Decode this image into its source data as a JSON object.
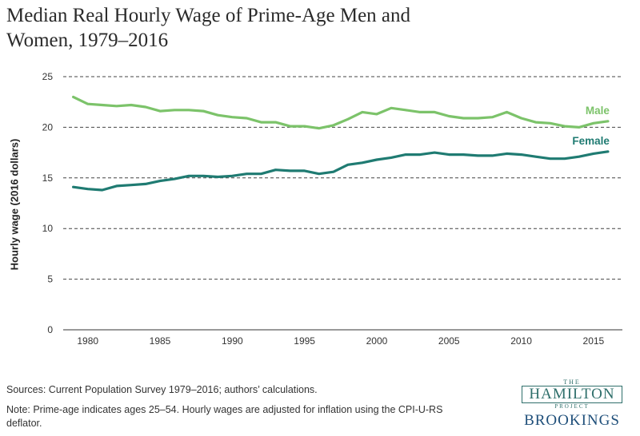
{
  "title": "Median Real Hourly Wage of Prime-Age Men and Women, 1979–2016",
  "sources": "Sources: Current Population Survey 1979–2016; authors’ calculations.",
  "note": "Note: Prime-age indicates ages 25–54. Hourly wages are adjusted for inflation using the CPI-U-RS deflator.",
  "logo": {
    "the": "THE",
    "hamilton": "HAMILTON",
    "project": "PROJECT",
    "brookings": "BROOKINGS"
  },
  "chart_data": {
    "type": "line",
    "ylabel": "Hourly wage (2016 dollars)",
    "xlabel": "",
    "ylim": [
      0,
      25
    ],
    "yticks": [
      0,
      5,
      10,
      15,
      20,
      25
    ],
    "xticks": [
      1980,
      1985,
      1990,
      1995,
      2000,
      2005,
      2010,
      2015
    ],
    "grid": "dashed horizontal",
    "x": [
      1979,
      1980,
      1981,
      1982,
      1983,
      1984,
      1985,
      1986,
      1987,
      1988,
      1989,
      1990,
      1991,
      1992,
      1993,
      1994,
      1995,
      1996,
      1997,
      1998,
      1999,
      2000,
      2001,
      2002,
      2003,
      2004,
      2005,
      2006,
      2007,
      2008,
      2009,
      2010,
      2011,
      2012,
      2013,
      2014,
      2015,
      2016
    ],
    "series": [
      {
        "name": "Male",
        "color": "#7cc36a",
        "values": [
          23.0,
          22.3,
          22.2,
          22.1,
          22.2,
          22.0,
          21.6,
          21.7,
          21.7,
          21.6,
          21.2,
          21.0,
          20.9,
          20.5,
          20.5,
          20.1,
          20.1,
          19.9,
          20.2,
          20.8,
          21.5,
          21.3,
          21.9,
          21.7,
          21.5,
          21.5,
          21.1,
          20.9,
          20.9,
          21.0,
          21.5,
          20.9,
          20.5,
          20.4,
          20.1,
          20.0,
          20.4,
          20.6
        ]
      },
      {
        "name": "Female",
        "color": "#1f7b72",
        "values": [
          14.1,
          13.9,
          13.8,
          14.2,
          14.3,
          14.4,
          14.7,
          14.9,
          15.2,
          15.2,
          15.1,
          15.2,
          15.4,
          15.4,
          15.8,
          15.7,
          15.7,
          15.4,
          15.6,
          16.3,
          16.5,
          16.8,
          17.0,
          17.3,
          17.3,
          17.5,
          17.3,
          17.3,
          17.2,
          17.2,
          17.4,
          17.3,
          17.1,
          16.9,
          16.9,
          17.1,
          17.4,
          17.6
        ]
      }
    ]
  }
}
